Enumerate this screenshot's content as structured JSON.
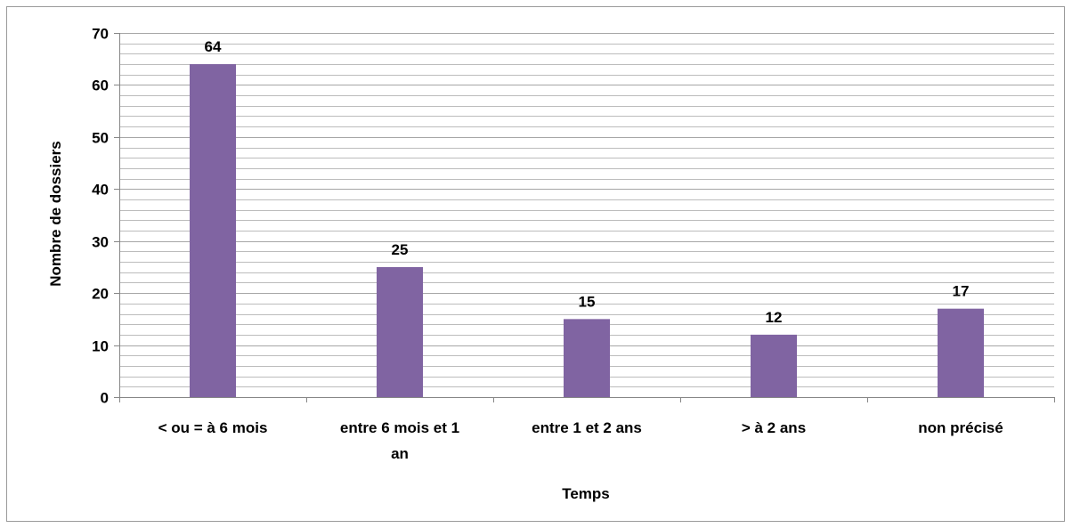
{
  "chart_data": {
    "type": "bar",
    "categories": [
      [
        "< ou = à 6 mois"
      ],
      [
        "entre 6 mois et 1",
        "an"
      ],
      [
        "entre 1 et 2 ans"
      ],
      [
        "> à 2 ans"
      ],
      [
        "non précisé"
      ]
    ],
    "values": [
      64,
      25,
      15,
      12,
      17
    ],
    "data_labels": [
      "64",
      "25",
      "15",
      "12",
      "17"
    ],
    "title": "",
    "xlabel": "Temps",
    "ylabel": "Nombre de dossiers",
    "ylim": [
      0,
      70
    ],
    "y_ticks": [
      "0",
      "10",
      "20",
      "30",
      "40",
      "50",
      "60",
      "70"
    ],
    "grid": true,
    "minor_grid": true,
    "legend": "none",
    "colors": {
      "bar": "#8064A2",
      "grid": "#a6a6a6",
      "axis": "#868686",
      "frame": "#9a9a9a"
    }
  }
}
